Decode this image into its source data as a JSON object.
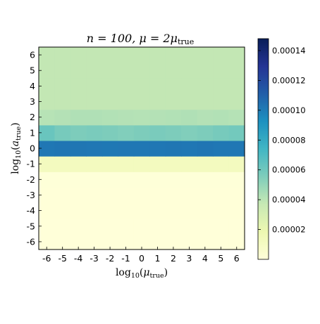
{
  "chart_data": {
    "type": "heatmap",
    "title": "n = 100,  μ = 2μ",
    "title_sub": "true",
    "xlabel": "log",
    "xlabel_sub_base": "10",
    "xlabel_arg": "μ",
    "xlabel_arg_sub": "true",
    "ylabel": "log",
    "ylabel_sub_base": "10",
    "ylabel_arg": "a",
    "ylabel_arg_sub": "true",
    "x_ticks": [
      "-6",
      "-5",
      "-4",
      "-3",
      "-2",
      "-1",
      "0",
      "1",
      "2",
      "3",
      "4",
      "5",
      "6"
    ],
    "y_ticks": [
      "-6",
      "-5",
      "-4",
      "-3",
      "-2",
      "-1",
      "0",
      "1",
      "2",
      "3",
      "4",
      "5",
      "6"
    ],
    "colorbar": {
      "min": 0,
      "max": 0.000148,
      "colormap": "YlGnBu",
      "ticks": [
        "0.00002",
        "0.00004",
        "0.00006",
        "0.00008",
        "0.00010",
        "0.00012",
        "0.00014"
      ]
    },
    "row_values": [
      [
        1e-07,
        1e-07,
        1e-07,
        1e-07,
        1e-07,
        1e-07,
        1e-07,
        1e-07,
        1e-07,
        1e-07,
        1e-07,
        1e-07,
        1e-07
      ],
      [
        2e-07,
        2e-07,
        2e-07,
        2e-07,
        2e-07,
        2e-07,
        2e-07,
        2e-07,
        2e-07,
        2e-07,
        2e-07,
        2e-07,
        2e-07
      ],
      [
        3e-07,
        3e-07,
        3e-07,
        3e-07,
        3e-07,
        3e-07,
        3e-07,
        3e-07,
        3e-07,
        3e-07,
        3e-07,
        3e-07,
        3e-07
      ],
      [
        4e-07,
        4e-07,
        4e-07,
        4e-07,
        4e-07,
        4e-07,
        4e-07,
        4e-07,
        4e-07,
        4e-07,
        4e-07,
        4e-07,
        4e-07
      ],
      [
        6e-07,
        6e-07,
        6e-07,
        6e-07,
        6e-07,
        6e-07,
        6e-07,
        6e-07,
        6e-07,
        6e-07,
        6e-07,
        6e-07,
        6e-07
      ],
      [
        1.2e-05,
        1.2e-05,
        1.22e-05,
        1.22e-05,
        1.2e-05,
        1.21e-05,
        1.22e-05,
        1.21e-05,
        1.2e-05,
        1.21e-05,
        1.22e-05,
        1.21e-05,
        1.2e-05
      ],
      [
        0.000102,
        0.0001025,
        0.0001022,
        0.0001018,
        0.0001015,
        0.000102,
        0.0001018,
        0.000102,
        0.0001022,
        0.000102,
        0.0001025,
        0.000102,
        0.0001018
      ],
      [
        6.2e-05,
        5.8e-05,
        5.6e-05,
        5.7e-05,
        5.6e-05,
        5.5e-05,
        5.6e-05,
        5.7e-05,
        5.6e-05,
        5.5e-05,
        5.6e-05,
        5.8e-05,
        5.9e-05
      ],
      [
        4.1e-05,
        4.2e-05,
        4.3e-05,
        4.3e-05,
        4.25e-05,
        4.2e-05,
        4.15e-05,
        4.2e-05,
        4.25e-05,
        4.3e-05,
        4.2e-05,
        4.25e-05,
        4.15e-05
      ],
      [
        3.8e-05,
        3.8e-05,
        3.8e-05,
        3.8e-05,
        3.8e-05,
        3.8e-05,
        3.8e-05,
        3.8e-05,
        3.8e-05,
        3.8e-05,
        3.8e-05,
        3.8e-05,
        3.8e-05
      ],
      [
        3.8e-05,
        3.8e-05,
        3.8e-05,
        3.8e-05,
        3.8e-05,
        3.8e-05,
        3.8e-05,
        3.8e-05,
        3.8e-05,
        3.8e-05,
        3.8e-05,
        3.8e-05,
        3.8e-05
      ],
      [
        3.8e-05,
        3.8e-05,
        3.8e-05,
        3.8e-05,
        3.8e-05,
        3.8e-05,
        3.8e-05,
        3.8e-05,
        3.8e-05,
        3.8e-05,
        3.8e-05,
        3.8e-05,
        3.8e-05
      ],
      [
        3.8e-05,
        3.8e-05,
        3.8e-05,
        3.8e-05,
        3.8e-05,
        3.8e-05,
        3.8e-05,
        3.8e-05,
        3.8e-05,
        3.8e-05,
        3.8e-05,
        3.8e-05,
        3.8e-05
      ]
    ]
  }
}
